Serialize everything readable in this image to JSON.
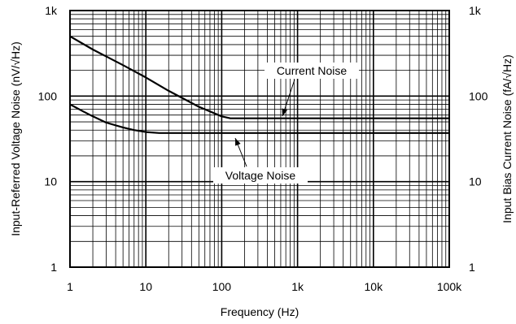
{
  "chart_data": {
    "type": "line",
    "xlabel": "Frequency (Hz)",
    "ylabel": "Input-Referred Voltage Noise (nV/√Hz)",
    "ylabel_right": "Input Bias Current Noise (fA/√Hz)",
    "x_scale": "log",
    "y_scale": "log",
    "xlim": [
      1,
      100000
    ],
    "ylim": [
      1,
      1000
    ],
    "x_ticks": [
      {
        "value": 1,
        "label": "1"
      },
      {
        "value": 10,
        "label": "10"
      },
      {
        "value": 100,
        "label": "100"
      },
      {
        "value": 1000,
        "label": "1k"
      },
      {
        "value": 10000,
        "label": "10k"
      },
      {
        "value": 100000,
        "label": "100k"
      }
    ],
    "y_ticks": [
      {
        "value": 1,
        "label": "1"
      },
      {
        "value": 10,
        "label": "10"
      },
      {
        "value": 100,
        "label": "100"
      },
      {
        "value": 1000,
        "label": "1k"
      }
    ],
    "y_ticks_right": [
      {
        "value": 1,
        "label": "1"
      },
      {
        "value": 10,
        "label": "10"
      },
      {
        "value": 100,
        "label": "100"
      },
      {
        "value": 1000,
        "label": "1k"
      }
    ],
    "grid": true,
    "series": [
      {
        "name": "Current Noise",
        "x": [
          1,
          2,
          5,
          10,
          20,
          50,
          100,
          130,
          200,
          500,
          1000,
          10000,
          100000
        ],
        "values": [
          500,
          350,
          230,
          165,
          115,
          75,
          58,
          55,
          55,
          55,
          55,
          55,
          55
        ]
      },
      {
        "name": "Voltage Noise",
        "x": [
          1,
          1.5,
          2,
          3,
          5,
          7,
          10,
          15,
          20,
          100,
          1000,
          10000,
          100000
        ],
        "values": [
          80,
          66,
          58,
          49,
          43,
          40,
          38,
          37,
          37,
          37,
          37,
          37,
          37
        ]
      }
    ],
    "annotations": [
      {
        "text": "Current Noise",
        "target_series": "Current Noise"
      },
      {
        "text": "Voltage Noise",
        "target_series": "Voltage Noise"
      }
    ]
  }
}
